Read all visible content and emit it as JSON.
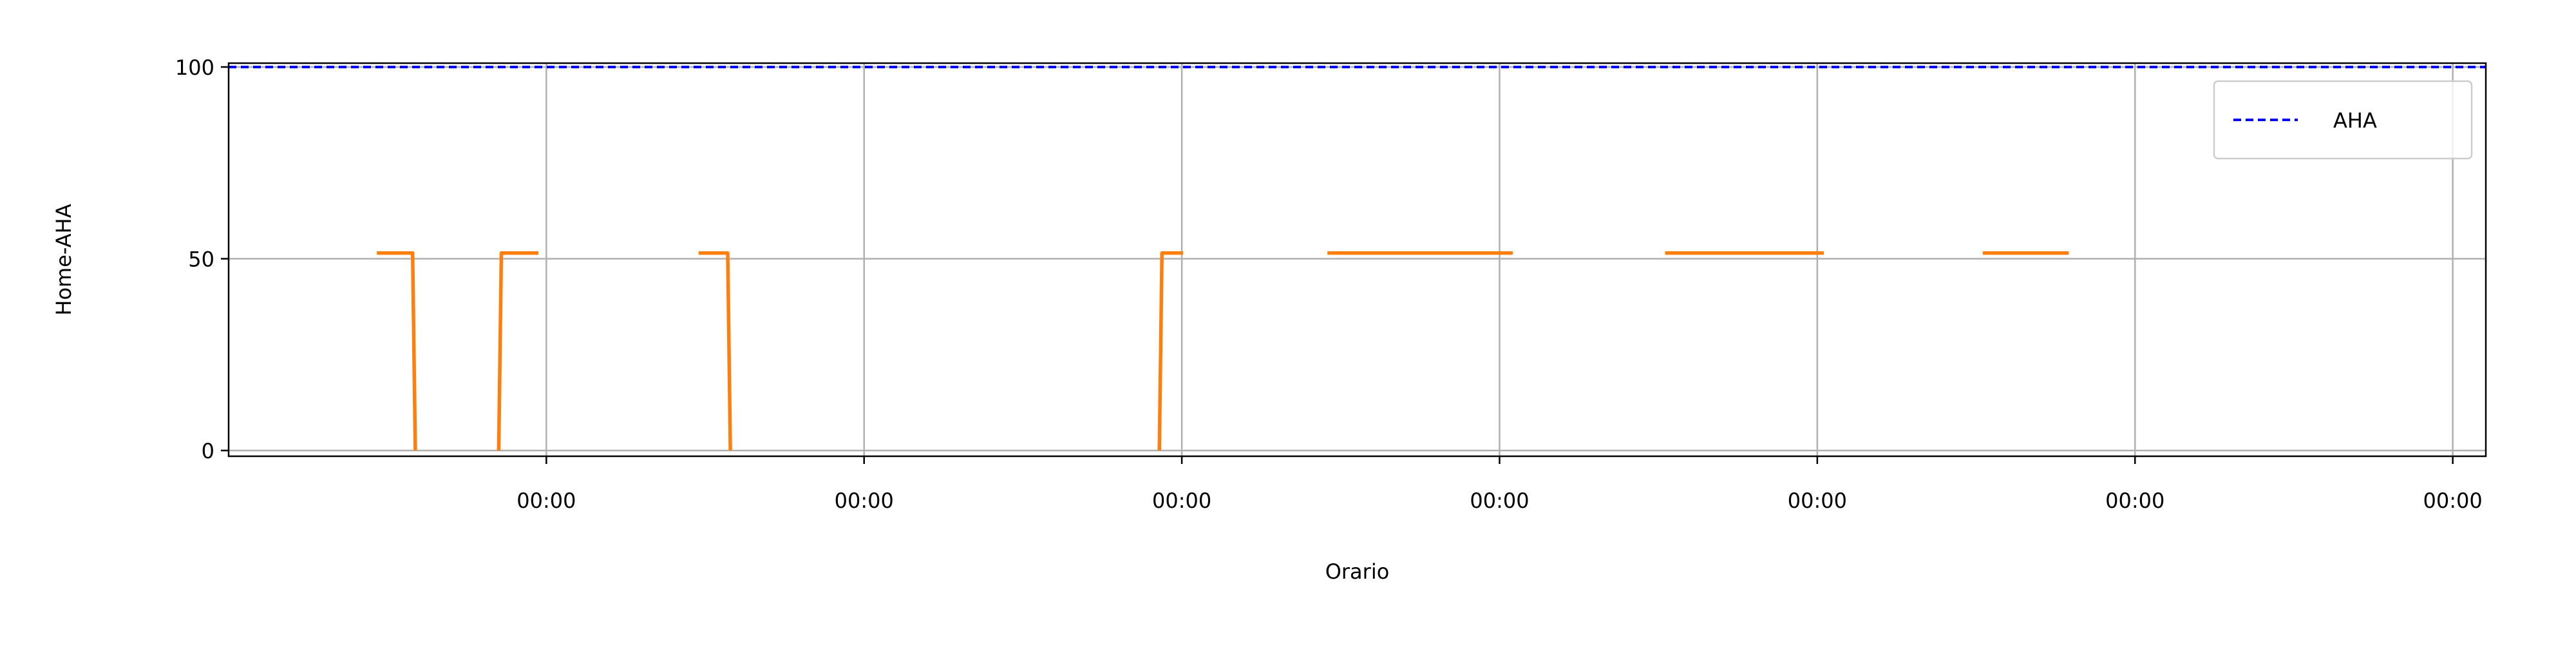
{
  "chart_data": {
    "type": "line",
    "title": "",
    "xlabel": "Orario",
    "ylabel": "Home-AHA",
    "x_unit": "hours",
    "xlim": [
      -24.0,
      146.5
    ],
    "ylim": [
      -1.5,
      101
    ],
    "yticks": [
      0,
      50,
      100
    ],
    "ytick_labels": [
      "0",
      "50",
      "100"
    ],
    "xticks": [
      0,
      24,
      48,
      72,
      96,
      120,
      144
    ],
    "xtick_labels": [
      "00:00",
      "00:00",
      "00:00",
      "00:00",
      "00:00",
      "00:00",
      "00:00"
    ],
    "grid": true,
    "legend": {
      "placement": "top-right",
      "entries": [
        "AHA"
      ]
    },
    "series": [
      {
        "name": "",
        "color": "#ff7f0e",
        "style": "solid",
        "segments": [
          [
            [
              -12.8,
              51.5
            ],
            [
              -10.1,
              51.5
            ],
            [
              -9.9,
              0
            ]
          ],
          [
            [
              -3.6,
              0
            ],
            [
              -3.4,
              51.5
            ],
            [
              -0.6,
              51.5
            ]
          ],
          [
            [
              11.5,
              51.5
            ],
            [
              13.7,
              51.5
            ],
            [
              13.9,
              0
            ]
          ],
          [
            [
              46.3,
              0
            ],
            [
              46.5,
              51.5
            ],
            [
              48.1,
              51.5
            ]
          ],
          [
            [
              59.0,
              51.5
            ],
            [
              73.0,
              51.5
            ]
          ],
          [
            [
              84.5,
              51.5
            ],
            [
              96.5,
              51.5
            ]
          ],
          [
            [
              108.5,
              51.5
            ],
            [
              115.0,
              51.5
            ]
          ]
        ]
      },
      {
        "name": "AHA",
        "color": "#0000ff",
        "style": "dashed",
        "segments": [
          [
            [
              -24.0,
              100
            ],
            [
              146.5,
              100
            ]
          ]
        ]
      }
    ]
  }
}
